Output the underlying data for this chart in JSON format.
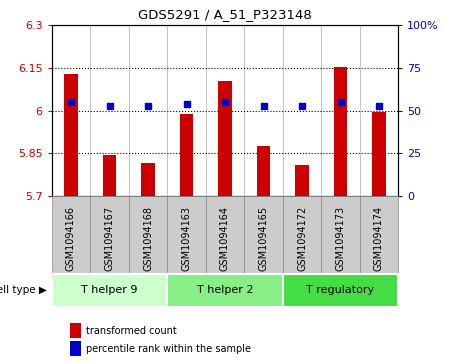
{
  "title": "GDS5291 / A_51_P323148",
  "samples": [
    "GSM1094166",
    "GSM1094167",
    "GSM1094168",
    "GSM1094163",
    "GSM1094164",
    "GSM1094165",
    "GSM1094172",
    "GSM1094173",
    "GSM1094174"
  ],
  "bar_values": [
    6.13,
    5.845,
    5.815,
    5.99,
    6.105,
    5.875,
    5.81,
    6.155,
    5.995
  ],
  "dot_values": [
    55,
    53,
    53,
    54,
    55,
    53,
    53,
    55,
    53
  ],
  "ylim_left": [
    5.7,
    6.3
  ],
  "ylim_right": [
    0,
    100
  ],
  "yticks_left": [
    5.7,
    5.85,
    6.0,
    6.15,
    6.3
  ],
  "yticks_right": [
    0,
    25,
    50,
    75,
    100
  ],
  "ytick_labels_left": [
    "5.7",
    "5.85",
    "6",
    "6.15",
    "6.3"
  ],
  "ytick_labels_right": [
    "0",
    "25",
    "50",
    "75",
    "100%"
  ],
  "hlines": [
    5.85,
    6.0,
    6.15
  ],
  "cell_groups": [
    {
      "label": "T helper 9",
      "indices": [
        0,
        1,
        2
      ],
      "color": "#ccffcc"
    },
    {
      "label": "T helper 2",
      "indices": [
        3,
        4,
        5
      ],
      "color": "#88ee88"
    },
    {
      "label": "T regulatory",
      "indices": [
        6,
        7,
        8
      ],
      "color": "#44dd44"
    }
  ],
  "bar_color": "#cc0000",
  "dot_color": "#0000cc",
  "bar_bottom": 5.7,
  "tick_label_color_left": "#cc0000",
  "tick_label_color_right": "#0000cc",
  "legend_bar_label": "transformed count",
  "legend_dot_label": "percentile rank within the sample",
  "cell_type_label": "cell type",
  "bg_plot": "#ffffff",
  "bg_sample": "#cccccc",
  "bar_width": 0.35
}
